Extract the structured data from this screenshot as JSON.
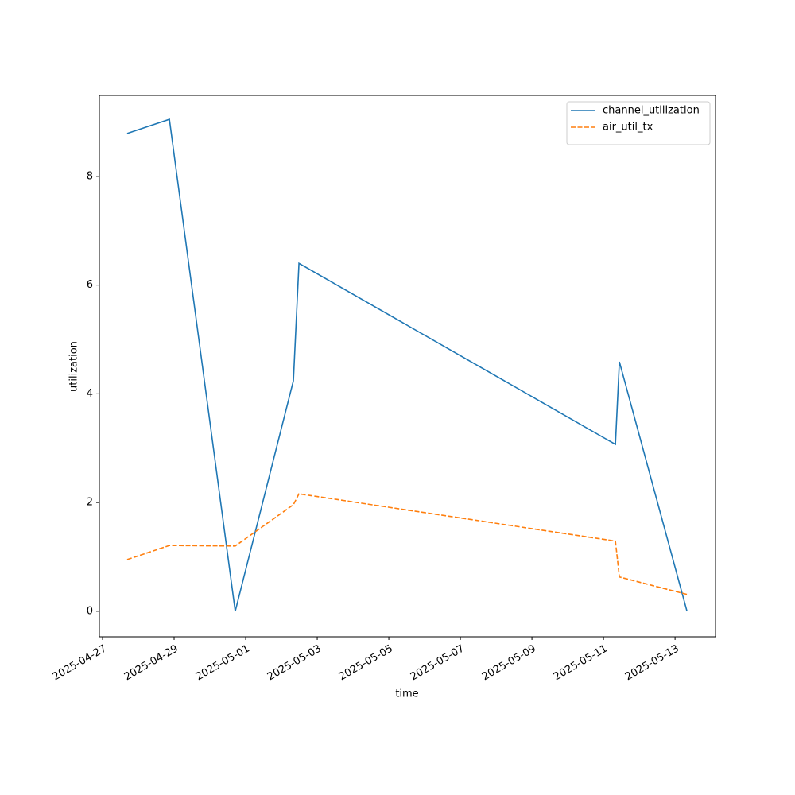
{
  "chart_data": {
    "type": "line",
    "x_label": "time",
    "y_label": "utilization",
    "x": [
      "2025-04-27T16:30",
      "2025-04-28T20:50",
      "2025-04-30T17:00",
      "2025-05-02T08:00",
      "2025-05-02T11:45",
      "2025-05-11T08:00",
      "2025-05-11T10:40",
      "2025-05-13T08:00"
    ],
    "series": [
      {
        "name": "channel_utilization",
        "color": "#1f77b4",
        "dash": "solid",
        "values": [
          8.79,
          9.05,
          0,
          4.24,
          6.4,
          3.07,
          4.59,
          0
        ]
      },
      {
        "name": "air_util_tx",
        "color": "#ff7f0e",
        "dash": "dashed",
        "values": [
          0.95,
          1.21,
          1.2,
          1.96,
          2.16,
          1.29,
          0.63,
          0.31
        ]
      }
    ],
    "xlim": [
      "2025-04-26T21:52",
      "2025-05-14T03:08"
    ],
    "xticks": [
      "2025-04-27",
      "2025-04-29",
      "2025-05-01",
      "2025-05-03",
      "2025-05-05",
      "2025-05-07",
      "2025-05-09",
      "2025-05-11",
      "2025-05-13"
    ],
    "ylim": [
      -0.47,
      9.49
    ],
    "yticks": [
      0,
      2,
      4,
      6,
      8
    ],
    "grid": false,
    "legend": "upper right"
  }
}
